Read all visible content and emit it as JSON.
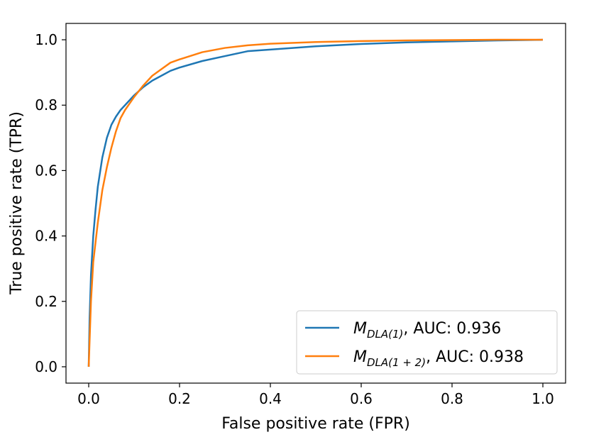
{
  "chart_data": {
    "type": "line",
    "title": "",
    "xlabel": "False positive rate (FPR)",
    "ylabel": "True positive rate (TPR)",
    "xlim": [
      -0.05,
      1.05
    ],
    "ylim": [
      -0.05,
      1.05
    ],
    "xticks": [
      0.0,
      0.2,
      0.4,
      0.6,
      0.8,
      1.0
    ],
    "yticks": [
      0.0,
      0.2,
      0.4,
      0.6,
      0.8,
      1.0
    ],
    "xtick_labels": [
      "0.0",
      "0.2",
      "0.4",
      "0.6",
      "0.8",
      "1.0"
    ],
    "ytick_labels": [
      "0.0",
      "0.2",
      "0.4",
      "0.6",
      "0.8",
      "1.0"
    ],
    "grid": false,
    "legend_position": "bottom-right",
    "series": [
      {
        "name": "M_DLA(1), AUC: 0.936",
        "legend_main": "M",
        "legend_sub": "DLA(1)",
        "legend_suffix": ", AUC: 0.936",
        "color": "#1f77b4",
        "x": [
          0.0,
          0.002,
          0.005,
          0.01,
          0.015,
          0.02,
          0.03,
          0.04,
          0.05,
          0.06,
          0.07,
          0.08,
          0.1,
          0.12,
          0.14,
          0.16,
          0.18,
          0.2,
          0.25,
          0.3,
          0.35,
          0.4,
          0.5,
          0.6,
          0.7,
          0.8,
          0.9,
          1.0
        ],
        "y": [
          0.0,
          0.15,
          0.28,
          0.4,
          0.48,
          0.55,
          0.64,
          0.7,
          0.74,
          0.765,
          0.785,
          0.8,
          0.83,
          0.855,
          0.875,
          0.89,
          0.905,
          0.915,
          0.935,
          0.95,
          0.965,
          0.97,
          0.98,
          0.987,
          0.992,
          0.995,
          0.998,
          1.0
        ]
      },
      {
        "name": "M_DLA(1+2), AUC: 0.938",
        "legend_main": "M",
        "legend_sub": "DLA(1 + 2)",
        "legend_suffix": ", AUC: 0.938",
        "color": "#ff7f0e",
        "x": [
          0.0,
          0.005,
          0.01,
          0.02,
          0.03,
          0.04,
          0.05,
          0.06,
          0.07,
          0.08,
          0.09,
          0.1,
          0.12,
          0.14,
          0.16,
          0.18,
          0.2,
          0.25,
          0.3,
          0.35,
          0.4,
          0.5,
          0.6,
          0.7,
          0.8,
          0.9,
          1.0
        ],
        "y": [
          0.0,
          0.2,
          0.32,
          0.44,
          0.54,
          0.61,
          0.67,
          0.72,
          0.76,
          0.785,
          0.805,
          0.825,
          0.86,
          0.89,
          0.91,
          0.93,
          0.94,
          0.962,
          0.975,
          0.983,
          0.988,
          0.993,
          0.996,
          0.998,
          0.999,
          1.0,
          1.0
        ]
      }
    ]
  }
}
